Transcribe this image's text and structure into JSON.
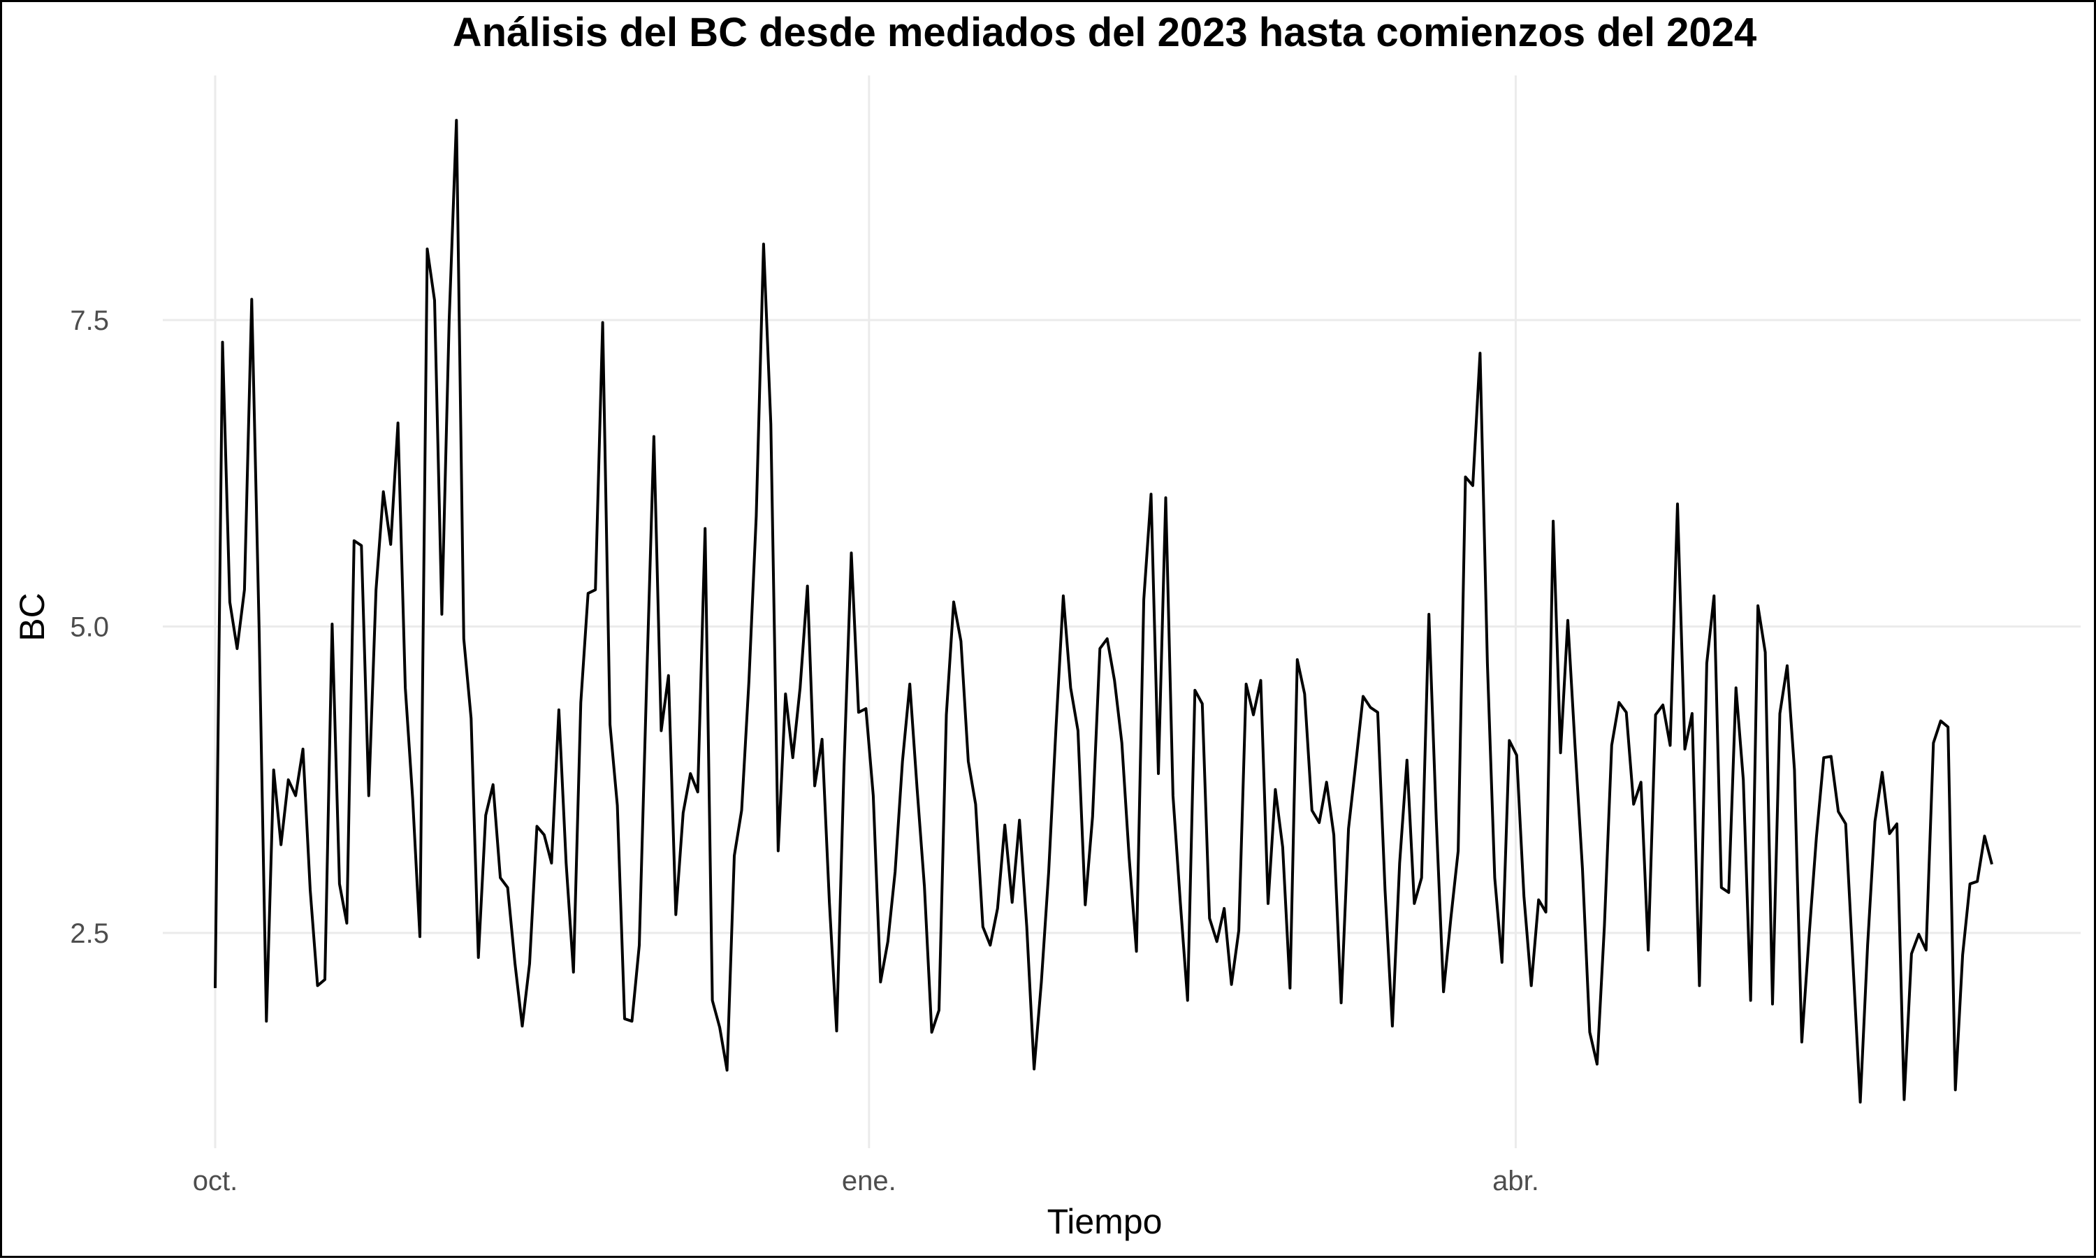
{
  "chart_data": {
    "type": "line",
    "title": "Análisis del BC desde mediados del 2023 hasta comienzos del 2024",
    "xlabel": "Tiempo",
    "ylabel": "BC",
    "x_start": "2023-10-01",
    "x_end": "2024-06-07",
    "x_ticks": [
      {
        "date": "2023-10-01",
        "label": "oct."
      },
      {
        "date": "2024-01-01",
        "label": "ene."
      },
      {
        "date": "2024-04-01",
        "label": "abr."
      }
    ],
    "y_ticks": [
      2.5,
      5.0,
      7.5
    ],
    "y_tick_labels": [
      "2.5",
      "5.0",
      "7.5"
    ],
    "ylim": [
      0.8,
      9.3
    ],
    "grid": true,
    "legend": "none",
    "series": [
      {
        "color": "#000000",
        "values": [
          2.05,
          7.32,
          5.2,
          4.82,
          5.3,
          7.67,
          5.0,
          1.78,
          3.83,
          3.22,
          3.75,
          3.62,
          4.0,
          2.85,
          2.07,
          2.12,
          5.02,
          2.9,
          2.58,
          5.7,
          5.66,
          3.62,
          5.3,
          6.1,
          5.67,
          6.66,
          4.5,
          3.6,
          2.47,
          8.08,
          7.66,
          5.1,
          7.5,
          9.13,
          4.9,
          4.25,
          2.3,
          3.46,
          3.71,
          2.95,
          2.87,
          2.25,
          1.74,
          2.25,
          3.37,
          3.3,
          3.07,
          4.32,
          3.07,
          2.18,
          4.38,
          5.27,
          5.3,
          7.48,
          4.2,
          3.54,
          1.8,
          1.78,
          2.4,
          4.52,
          6.55,
          4.15,
          4.6,
          2.65,
          3.48,
          3.8,
          3.65,
          5.8,
          1.95,
          1.73,
          1.38,
          3.13,
          3.5,
          4.55,
          5.9,
          8.12,
          6.65,
          3.17,
          4.45,
          3.93,
          4.5,
          5.33,
          3.7,
          4.08,
          2.75,
          1.7,
          3.85,
          5.6,
          4.3,
          4.33,
          3.62,
          2.1,
          2.43,
          3.0,
          3.9,
          4.53,
          3.68,
          2.88,
          1.69,
          1.87,
          4.28,
          5.2,
          4.88,
          3.9,
          3.55,
          2.55,
          2.4,
          2.7,
          3.38,
          2.75,
          3.42,
          2.55,
          1.39,
          2.1,
          3.0,
          4.18,
          5.25,
          4.5,
          4.15,
          2.73,
          3.45,
          4.82,
          4.9,
          4.56,
          4.05,
          3.12,
          2.35,
          5.22,
          6.08,
          3.8,
          6.05,
          3.62,
          2.75,
          1.95,
          4.48,
          4.37,
          2.62,
          2.43,
          2.7,
          2.08,
          2.52,
          4.53,
          4.28,
          4.56,
          2.74,
          3.67,
          3.2,
          2.05,
          4.73,
          4.45,
          3.5,
          3.4,
          3.73,
          3.3,
          1.93,
          3.35,
          3.88,
          4.43,
          4.34,
          4.3,
          2.85,
          1.74,
          3.07,
          3.91,
          2.74,
          2.95,
          5.1,
          3.43,
          2.02,
          2.62,
          3.17,
          6.22,
          6.15,
          7.23,
          4.7,
          2.95,
          2.26,
          4.07,
          3.95,
          2.8,
          2.07,
          2.77,
          2.67,
          5.86,
          3.97,
          5.05,
          4.01,
          3.02,
          1.69,
          1.43,
          2.56,
          4.03,
          4.38,
          4.3,
          3.55,
          3.73,
          2.36,
          4.28,
          4.36,
          4.03,
          6.0,
          4.0,
          4.29,
          2.07,
          4.7,
          5.25,
          2.87,
          2.83,
          4.5,
          3.75,
          1.95,
          5.17,
          4.79,
          1.92,
          4.29,
          4.68,
          3.83,
          1.61,
          2.48,
          3.28,
          3.93,
          3.94,
          3.49,
          3.39,
          2.25,
          1.12,
          2.4,
          3.41,
          3.81,
          3.31,
          3.39,
          1.14,
          2.33,
          2.49,
          2.36,
          4.05,
          4.23,
          4.18,
          1.22,
          2.32,
          2.9,
          2.92,
          3.29,
          3.06
        ]
      }
    ]
  }
}
